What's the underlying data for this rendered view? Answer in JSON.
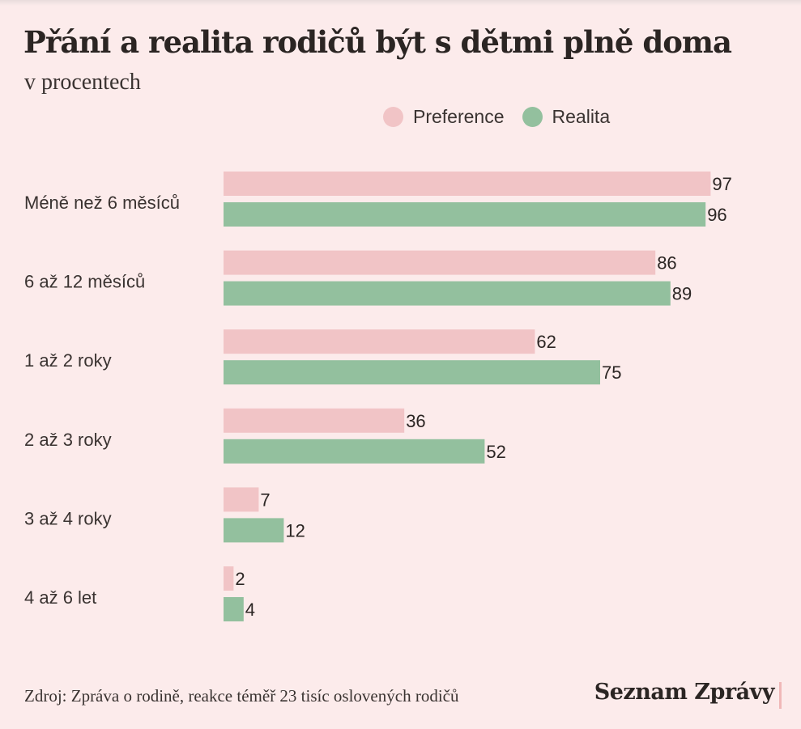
{
  "header": {
    "title": "Přání a realita rodičů být s dětmi plně doma",
    "subtitle": "v procentech"
  },
  "footer": {
    "source": "Zdroj: Zpráva o rodině, reakce téměř 23 tisíc oslovených rodičů",
    "brand": "Seznam Zprávy"
  },
  "colors": {
    "preference": "#f1c4c6",
    "realita": "#93c09e",
    "background": "#fcebeb"
  },
  "chart_data": {
    "type": "bar",
    "orientation": "horizontal",
    "title": "Přání a realita rodičů být s dětmi plně doma",
    "subtitle": "v procentech",
    "categories": [
      "Méně než 6 měsíců",
      "6 až 12 měsíců",
      "1 až 2 roky",
      "2 až 3 roky",
      "3 až 4 roky",
      "4 až 6 let"
    ],
    "series": [
      {
        "name": "Preference",
        "values": [
          97,
          86,
          62,
          36,
          7,
          2
        ]
      },
      {
        "name": "Realita",
        "values": [
          96,
          89,
          75,
          52,
          12,
          4
        ]
      }
    ],
    "xlim": [
      0,
      100
    ],
    "grid": false,
    "legend_position": "top",
    "data_labels": true
  }
}
